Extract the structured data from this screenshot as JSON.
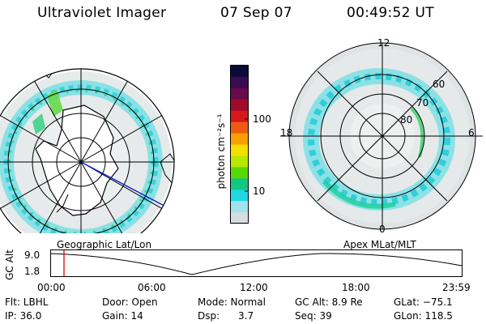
{
  "header": {
    "instrument": "Ultraviolet Imager",
    "date": "07 Sep 07",
    "time": "00:49:52 UT"
  },
  "colorbar": {
    "unit_label": "photon cm⁻²s⁻¹",
    "ticks": [
      "100",
      "10"
    ],
    "colors": [
      "#0b0b3a",
      "#3a0a52",
      "#6a0a4a",
      "#a00a2a",
      "#d81818",
      "#ef5a10",
      "#f7a000",
      "#f4e000",
      "#b8e800",
      "#56d800",
      "#10c880",
      "#20d8e0",
      "#9fe4ea",
      "#d9dcdc"
    ]
  },
  "left_map": {
    "caption": "Geographic Lat/Lon"
  },
  "right_map": {
    "caption": "Apex MLat/MLT",
    "mlt_labels": {
      "top": "12",
      "left": "18",
      "right": "6",
      "bottom": "0"
    },
    "lat_labels": [
      "60",
      "70",
      "80"
    ]
  },
  "altitude_plot": {
    "axis_title": "GC Alt",
    "y_ticks": [
      "9.0",
      "1.8"
    ],
    "x_ticks": [
      "00:00",
      "06:00",
      "12:00",
      "18:00",
      "23:59"
    ],
    "marker_color": "#e00000"
  },
  "footer": {
    "col1": [
      "Flt: LBHL",
      "IP: 36.0"
    ],
    "col2": [
      "Door: Open",
      "Gain: 14"
    ],
    "col3": [
      "Mode: Normal",
      "Dsp:      3.7"
    ],
    "col4": [
      "GC Alt: 8.9 Re",
      "Seq: 39"
    ],
    "col5": [
      "GLat: −75.1",
      "GLon: 118.5"
    ]
  }
}
